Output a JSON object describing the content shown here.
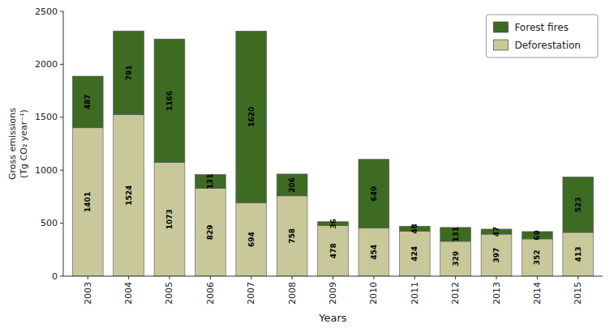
{
  "chart_data": {
    "type": "bar",
    "stacked": true,
    "data_labels": true,
    "grid": false,
    "legend": "upper right",
    "xlabel": "Years",
    "ylabel": "Gross emissions\n(Tg CO₂ year⁻¹)",
    "categories": [
      "2003",
      "2004",
      "2005",
      "2006",
      "2007",
      "2008",
      "2009",
      "2010",
      "2011",
      "2012",
      "2013",
      "2014",
      "2015"
    ],
    "series": [
      {
        "name": "Deforestation",
        "color": "#c8c89a",
        "values": [
          1401,
          1524,
          1073,
          829,
          694,
          758,
          478,
          454,
          424,
          329,
          397,
          352,
          413
        ]
      },
      {
        "name": "Forest fires",
        "color": "#3d6b22",
        "values": [
          487,
          791,
          1166,
          131,
          1620,
          206,
          36,
          649,
          48,
          131,
          47,
          69,
          523
        ]
      }
    ],
    "ylim": [
      0,
      2500
    ],
    "yticks": [
      0,
      500,
      1000,
      1500,
      2000,
      2500
    ]
  }
}
